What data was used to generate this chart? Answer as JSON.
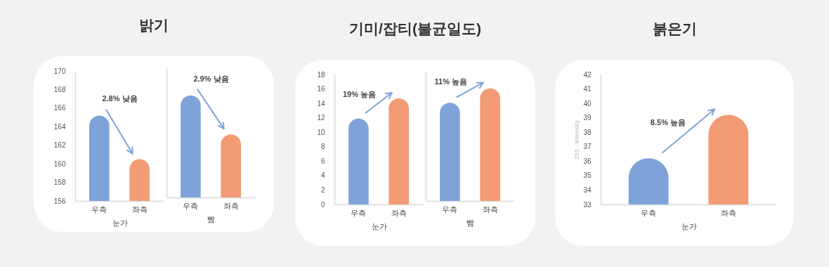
{
  "chart_data": [
    {
      "type": "bar",
      "title": "밝기",
      "categories": [
        "우측",
        "좌측"
      ],
      "values": [
        165.2,
        160.5
      ],
      "colors": [
        "#7fa3d9",
        "#f29b74"
      ],
      "xlabel": "눈가",
      "ylim": [
        156,
        170
      ],
      "yticks": [
        156,
        158,
        160,
        162,
        164,
        166,
        168,
        170
      ],
      "annotations": [
        "2.8% 낮음"
      ]
    },
    {
      "type": "bar",
      "categories": [
        "우측",
        "좌측"
      ],
      "values": [
        167.0,
        162.8
      ],
      "colors": [
        "#7fa3d9",
        "#f29b74"
      ],
      "xlabel": "빰",
      "ylim": [
        156,
        170
      ],
      "yticks": [
        156,
        158,
        160,
        162,
        164,
        166,
        168,
        170
      ],
      "tick_labels": "x",
      "annotations": [
        "2.9% 낮음"
      ]
    },
    {
      "type": "bar",
      "title": "기미/잡티(불균일도)",
      "categories": [
        "우측",
        "좌측"
      ],
      "values": [
        11.9,
        14.7
      ],
      "colors": [
        "#7fa3d9",
        "#f29b74"
      ],
      "xlabel": "눈가",
      "ylim": [
        0,
        18
      ],
      "yticks": [
        0,
        2,
        4,
        6,
        8,
        10,
        12,
        14,
        16,
        18
      ],
      "annotations": [
        "19% 높음"
      ]
    },
    {
      "type": "bar",
      "categories": [
        "우측",
        "좌측"
      ],
      "values": [
        13.6,
        15.6
      ],
      "colors": [
        "#7fa3d9",
        "#f29b74"
      ],
      "xlabel": "빰",
      "ylim": [
        0,
        18
      ],
      "yticks": [
        0,
        2,
        4,
        6,
        8,
        10,
        12,
        14,
        16,
        18
      ],
      "tick_labels": "x",
      "annotations": [
        "11% 높음"
      ]
    },
    {
      "type": "bar",
      "title": "붉은기",
      "categories": [
        "우측",
        "좌측"
      ],
      "values": [
        36.2,
        39.2
      ],
      "colors": [
        "#7fa3d9",
        "#f29b74"
      ],
      "xlabel": "눈가",
      "ylabel": "255 - intensity",
      "ylim": [
        33,
        42
      ],
      "yticks": [
        33,
        34,
        35,
        36,
        37,
        38,
        39,
        40,
        41,
        42
      ],
      "annotations": [
        "8.5% 높음"
      ]
    }
  ]
}
